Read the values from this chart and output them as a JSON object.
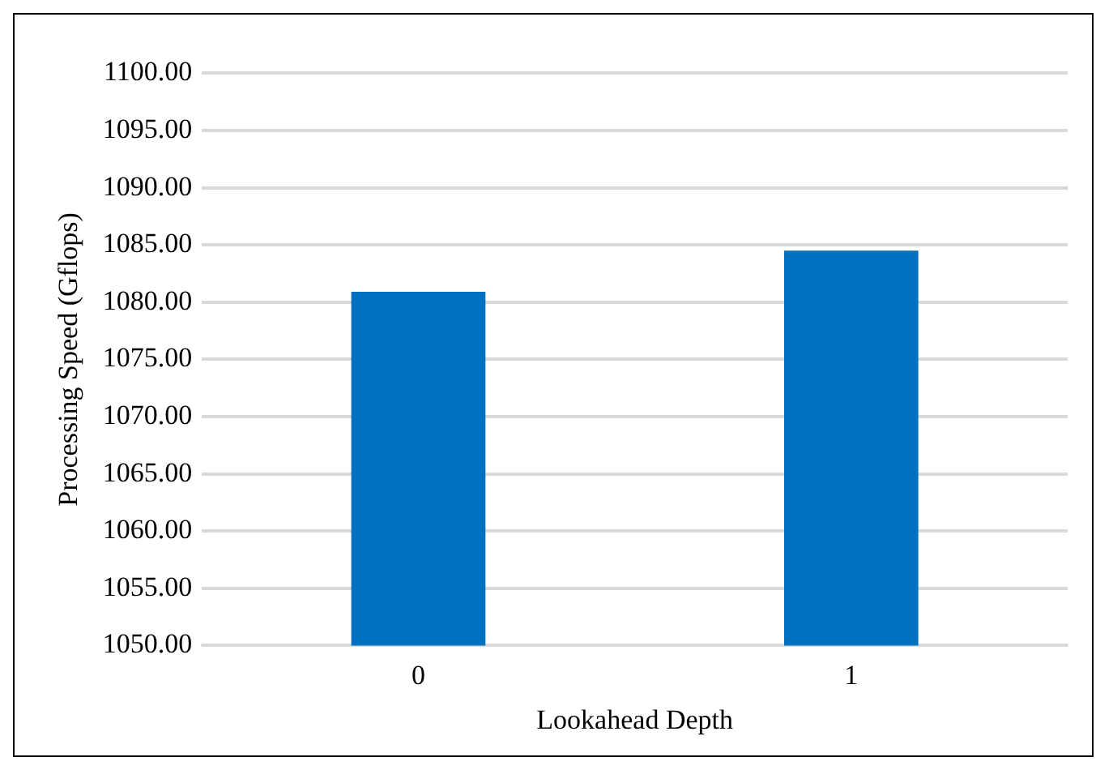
{
  "chart_data": {
    "type": "bar",
    "xlabel": "Lookahead Depth",
    "ylabel": "Processing Speed (Gflops)",
    "categories": [
      "0",
      "1"
    ],
    "values": [
      1080.9,
      1084.5
    ],
    "color": "#0070c0",
    "ylim": [
      1050,
      1100
    ],
    "yticks": [
      {
        "value": 1050,
        "label": "1050.00"
      },
      {
        "value": 1055,
        "label": "1055.00"
      },
      {
        "value": 1060,
        "label": "1060.00"
      },
      {
        "value": 1065,
        "label": "1065.00"
      },
      {
        "value": 1070,
        "label": "1070.00"
      },
      {
        "value": 1075,
        "label": "1075.00"
      },
      {
        "value": 1080,
        "label": "1080.00"
      },
      {
        "value": 1085,
        "label": "1085.00"
      },
      {
        "value": 1090,
        "label": "1090.00"
      },
      {
        "value": 1095,
        "label": "1095.00"
      },
      {
        "value": 1100,
        "label": "1100.00"
      }
    ],
    "grid": "y",
    "legend": false
  }
}
